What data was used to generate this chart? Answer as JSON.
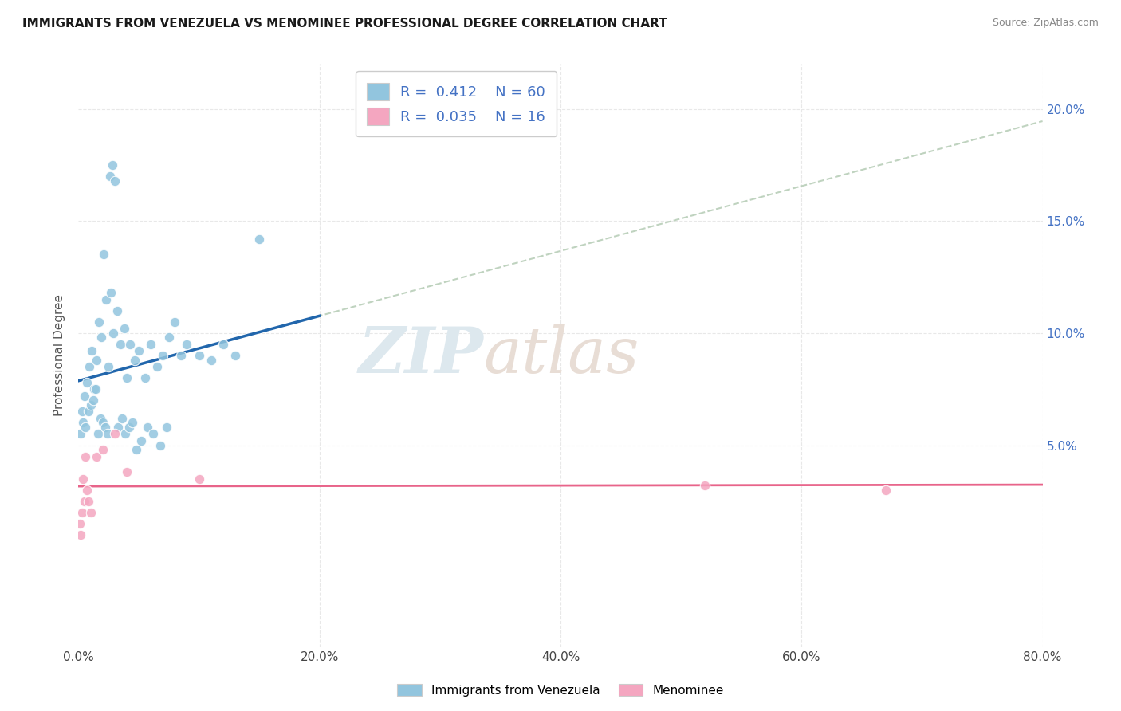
{
  "title": "IMMIGRANTS FROM VENEZUELA VS MENOMINEE PROFESSIONAL DEGREE CORRELATION CHART",
  "source": "Source: ZipAtlas.com",
  "ylabel": "Professional Degree",
  "watermark_part1": "ZIP",
  "watermark_part2": "atlas",
  "blue_R": 0.412,
  "blue_N": 60,
  "pink_R": 0.035,
  "pink_N": 16,
  "blue_color": "#92c5de",
  "pink_color": "#f4a6c0",
  "blue_line_color": "#2166ac",
  "pink_line_color": "#e8648a",
  "trend_dash_color": "#b0c8b0",
  "xlim": [
    0,
    80
  ],
  "ylim": [
    -4,
    22
  ],
  "blue_x": [
    0.3,
    0.5,
    0.7,
    0.9,
    1.1,
    1.3,
    1.5,
    1.7,
    1.9,
    2.1,
    2.3,
    2.5,
    2.7,
    2.9,
    3.2,
    3.5,
    3.8,
    4.0,
    4.3,
    4.7,
    5.0,
    5.5,
    6.0,
    6.5,
    7.0,
    7.5,
    8.0,
    9.0,
    10.0,
    11.0,
    13.0,
    15.0,
    0.2,
    0.4,
    0.6,
    0.8,
    1.0,
    1.2,
    1.4,
    1.6,
    1.8,
    2.0,
    2.2,
    2.4,
    2.6,
    2.8,
    3.0,
    3.3,
    3.6,
    3.9,
    4.2,
    4.5,
    4.8,
    5.2,
    5.7,
    6.2,
    6.8,
    7.3,
    8.5,
    12.0
  ],
  "blue_y": [
    6.5,
    7.2,
    7.8,
    8.5,
    9.2,
    7.5,
    8.8,
    10.5,
    9.8,
    13.5,
    11.5,
    8.5,
    11.8,
    10.0,
    11.0,
    9.5,
    10.2,
    8.0,
    9.5,
    8.8,
    9.2,
    8.0,
    9.5,
    8.5,
    9.0,
    9.8,
    10.5,
    9.5,
    9.0,
    8.8,
    9.0,
    14.2,
    5.5,
    6.0,
    5.8,
    6.5,
    6.8,
    7.0,
    7.5,
    5.5,
    6.2,
    6.0,
    5.8,
    5.5,
    17.0,
    17.5,
    16.8,
    5.8,
    6.2,
    5.5,
    5.8,
    6.0,
    4.8,
    5.2,
    5.8,
    5.5,
    5.0,
    5.8,
    9.0,
    9.5
  ],
  "pink_x": [
    0.1,
    0.2,
    0.3,
    0.4,
    0.5,
    0.6,
    0.7,
    0.8,
    1.0,
    1.5,
    2.0,
    3.0,
    4.0,
    10.0,
    52.0,
    67.0
  ],
  "pink_y": [
    1.5,
    1.0,
    2.0,
    3.5,
    2.5,
    4.5,
    3.0,
    2.5,
    2.0,
    4.5,
    4.8,
    5.5,
    3.8,
    3.5,
    3.2,
    3.0
  ],
  "background_color": "#ffffff",
  "grid_color": "#e8e8e8"
}
